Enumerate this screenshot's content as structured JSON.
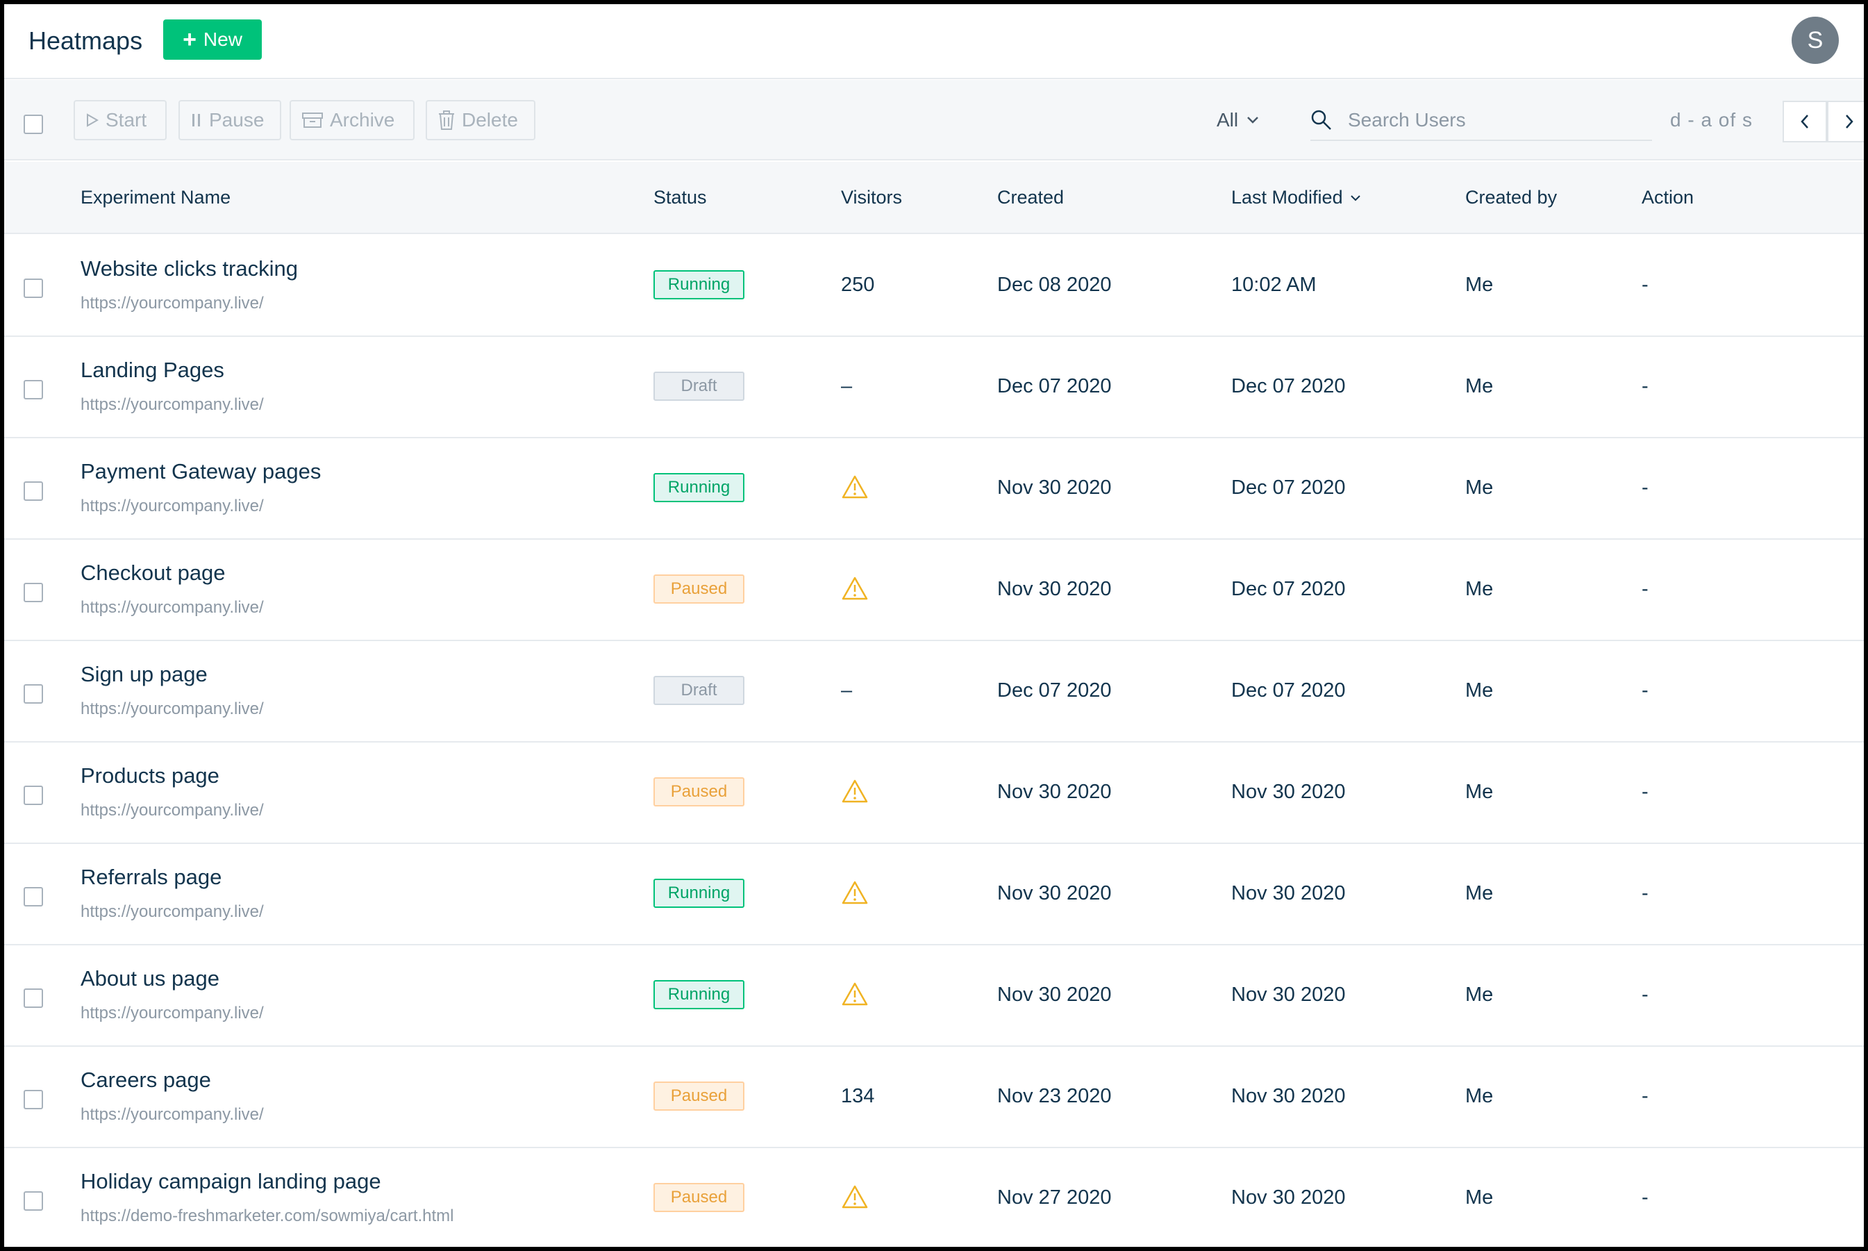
{
  "header": {
    "title": "Heatmaps",
    "new_label": "New",
    "avatar_initial": "S",
    "brand_color": "#00c27a"
  },
  "toolbar": {
    "start_label": "Start",
    "pause_label": "Pause",
    "archive_label": "Archive",
    "delete_label": "Delete",
    "filter_label": "All",
    "search_placeholder": "Search Users",
    "pager_text": "d - a of s"
  },
  "columns": {
    "name": "Experiment Name",
    "status": "Status",
    "visitors": "Visitors",
    "created": "Created",
    "modified": "Last Modified",
    "creator": "Created by",
    "action": "Action"
  },
  "status_colors": {
    "Running": "#00c27a",
    "Draft": "#8c98a4",
    "Paused": "#e9a13a"
  },
  "rows": [
    {
      "name": "Website clicks tracking",
      "url": "https://yourcompany.live/",
      "status": "Running",
      "visitors": "250",
      "warning": false,
      "created": "Dec 08 2020",
      "modified": "10:02 AM",
      "creator": "Me",
      "action": "-"
    },
    {
      "name": "Landing Pages",
      "url": "https://yourcompany.live/",
      "status": "Draft",
      "visitors": "–",
      "warning": false,
      "created": "Dec 07 2020",
      "modified": "Dec 07 2020",
      "creator": "Me",
      "action": "-"
    },
    {
      "name": "Payment Gateway pages",
      "url": "https://yourcompany.live/",
      "status": "Running",
      "visitors": "",
      "warning": true,
      "created": "Nov 30 2020",
      "modified": "Dec 07 2020",
      "creator": "Me",
      "action": "-"
    },
    {
      "name": "Checkout page",
      "url": "https://yourcompany.live/",
      "status": "Paused",
      "visitors": "",
      "warning": true,
      "created": "Nov 30 2020",
      "modified": "Dec 07 2020",
      "creator": "Me",
      "action": "-"
    },
    {
      "name": "Sign up page",
      "url": "https://yourcompany.live/",
      "status": "Draft",
      "visitors": "–",
      "warning": false,
      "created": "Dec 07 2020",
      "modified": "Dec 07 2020",
      "creator": "Me",
      "action": "-"
    },
    {
      "name": "Products page",
      "url": "https://yourcompany.live/",
      "status": "Paused",
      "visitors": "",
      "warning": true,
      "created": "Nov 30 2020",
      "modified": "Nov 30 2020",
      "creator": "Me",
      "action": "-"
    },
    {
      "name": "Referrals page",
      "url": "https://yourcompany.live/",
      "status": "Running",
      "visitors": "",
      "warning": true,
      "created": "Nov 30 2020",
      "modified": "Nov 30 2020",
      "creator": "Me",
      "action": "-"
    },
    {
      "name": "About us page",
      "url": "https://yourcompany.live/",
      "status": "Running",
      "visitors": "",
      "warning": true,
      "created": "Nov 30 2020",
      "modified": "Nov 30 2020",
      "creator": "Me",
      "action": "-"
    },
    {
      "name": "Careers page",
      "url": "https://yourcompany.live/",
      "status": "Paused",
      "visitors": "134",
      "warning": false,
      "created": "Nov 23 2020",
      "modified": "Nov 30 2020",
      "creator": "Me",
      "action": "-"
    },
    {
      "name": "Holiday campaign landing page",
      "url": "https://demo-freshmarketer.com/sowmiya/cart.html",
      "status": "Paused",
      "visitors": "",
      "warning": true,
      "created": "Nov 27 2020",
      "modified": "Nov 30 2020",
      "creator": "Me",
      "action": "-"
    }
  ]
}
